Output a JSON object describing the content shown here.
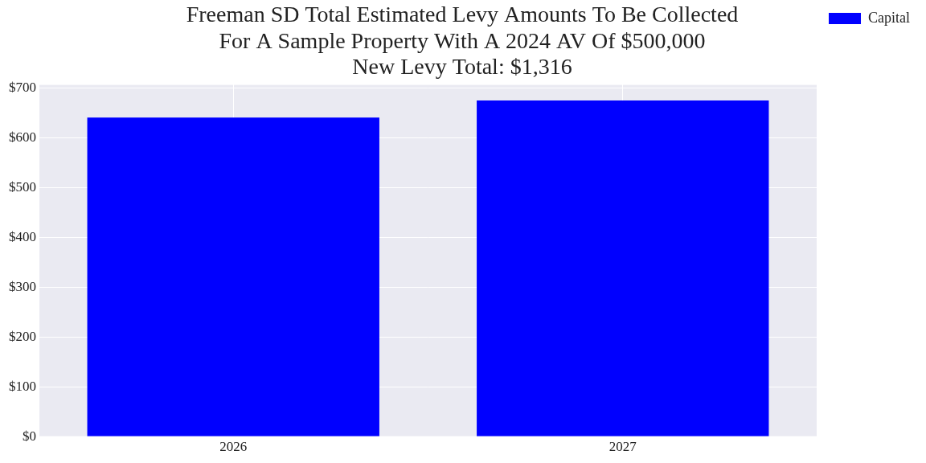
{
  "chart_data": {
    "type": "bar",
    "title": [
      "Freeman SD Total Estimated Levy Amounts To Be Collected",
      "For A Sample Property With A 2024 AV Of $500,000",
      "New Levy Total: $1,316"
    ],
    "categories": [
      "2026",
      "2027"
    ],
    "series": [
      {
        "name": "Capital",
        "color": "#0000ff",
        "values": [
          641,
          675
        ]
      }
    ],
    "ylim": [
      0,
      708
    ],
    "yticks": [
      {
        "value": 0,
        "label": "$0"
      },
      {
        "value": 100,
        "label": "$100"
      },
      {
        "value": 200,
        "label": "$200"
      },
      {
        "value": 300,
        "label": "$300"
      },
      {
        "value": 400,
        "label": "$400"
      },
      {
        "value": 500,
        "label": "$500"
      },
      {
        "value": 600,
        "label": "$600"
      },
      {
        "value": 700,
        "label": "$700"
      }
    ],
    "grid": true,
    "legend": "right"
  }
}
